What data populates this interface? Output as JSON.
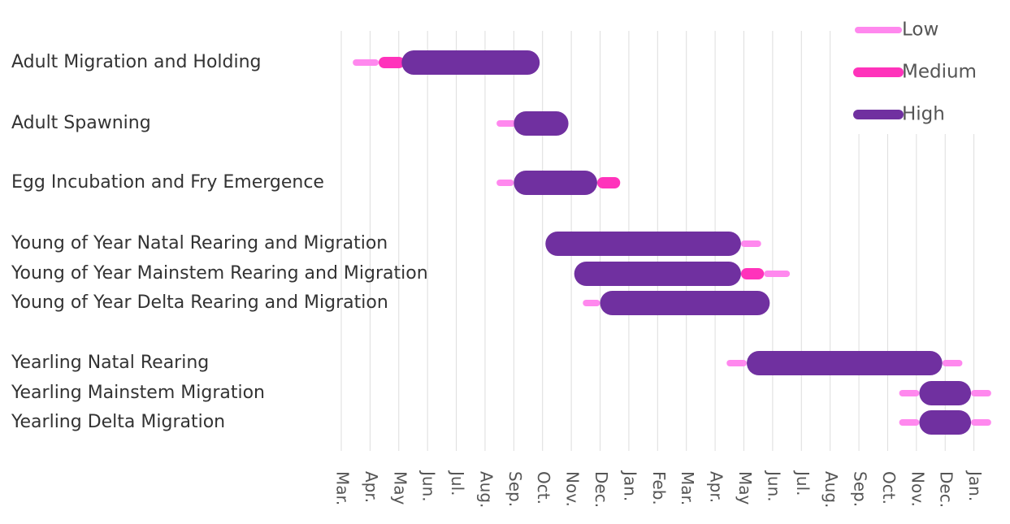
{
  "chart_data": {
    "type": "gantt",
    "categories": [
      "Adult Migration and Holding",
      "Adult Spawning",
      "Egg Incubation and Fry Emergence",
      "Young of Year Natal Rearing and Migration",
      "Young of Year Mainstem Rearing and Migration",
      "Young of Year Delta Rearing and Migration",
      "Yearling Natal Rearing",
      "Yearling Mainstem Migration",
      "Yearling Delta Migration"
    ],
    "series": [
      {
        "name": "Low",
        "color": "#ff88ee",
        "values": [
          [
            [
              0.4,
              1.3
            ]
          ],
          [
            [
              5.4,
              6.1
            ]
          ],
          [
            [
              5.4,
              6.0
            ]
          ],
          [
            [
              13.9,
              14.6
            ]
          ],
          [
            [
              14.7,
              15.6
            ]
          ],
          [
            [
              8.4,
              9.0
            ]
          ],
          [
            [
              13.4,
              14.1
            ],
            [
              20.9,
              21.6
            ]
          ],
          [
            [
              19.4,
              20.1
            ],
            [
              21.9,
              22.6
            ]
          ],
          [
            [
              19.4,
              20.1
            ],
            [
              21.9,
              22.6
            ]
          ]
        ]
      },
      {
        "name": "Medium",
        "color": "#ff33bb",
        "values": [
          [
            [
              1.3,
              2.2
            ]
          ],
          [],
          [
            [
              8.9,
              9.7
            ]
          ],
          [],
          [
            [
              13.9,
              14.7
            ]
          ],
          [],
          [],
          [],
          []
        ]
      },
      {
        "name": "High",
        "color": "#7030a0",
        "values": [
          [
            [
              2.1,
              6.9
            ]
          ],
          [
            [
              6.0,
              7.9
            ]
          ],
          [
            [
              6.0,
              8.9
            ]
          ],
          [
            [
              7.1,
              13.9
            ]
          ],
          [
            [
              8.1,
              13.9
            ]
          ],
          [
            [
              9.0,
              14.9
            ]
          ],
          [
            [
              14.1,
              20.9
            ]
          ],
          [
            [
              20.1,
              21.9
            ]
          ],
          [
            [
              20.1,
              21.9
            ]
          ]
        ]
      }
    ],
    "xlim": [
      0,
      23
    ],
    "xticks": [
      {
        "value": 0,
        "label": "Mar."
      },
      {
        "value": 1,
        "label": "Apr."
      },
      {
        "value": 2,
        "label": "May"
      },
      {
        "value": 3,
        "label": "Jun."
      },
      {
        "value": 4,
        "label": "Jul."
      },
      {
        "value": 5,
        "label": "Aug."
      },
      {
        "value": 6,
        "label": "Sep."
      },
      {
        "value": 7,
        "label": "Oct."
      },
      {
        "value": 8,
        "label": "Nov."
      },
      {
        "value": 9,
        "label": "Dec."
      },
      {
        "value": 10,
        "label": "Jan."
      },
      {
        "value": 11,
        "label": "Feb."
      },
      {
        "value": 12,
        "label": "Mar."
      },
      {
        "value": 13,
        "label": "Apr."
      },
      {
        "value": 14,
        "label": "May"
      },
      {
        "value": 15,
        "label": "Jun."
      },
      {
        "value": 16,
        "label": "Jul."
      },
      {
        "value": 17,
        "label": "Aug."
      },
      {
        "value": 18,
        "label": "Sep."
      },
      {
        "value": 19,
        "label": "Oct."
      },
      {
        "value": 20,
        "label": "Nov."
      },
      {
        "value": 21,
        "label": "Dec."
      },
      {
        "value": 22,
        "label": "Jan."
      }
    ],
    "grid": true,
    "legend": "top-right"
  }
}
